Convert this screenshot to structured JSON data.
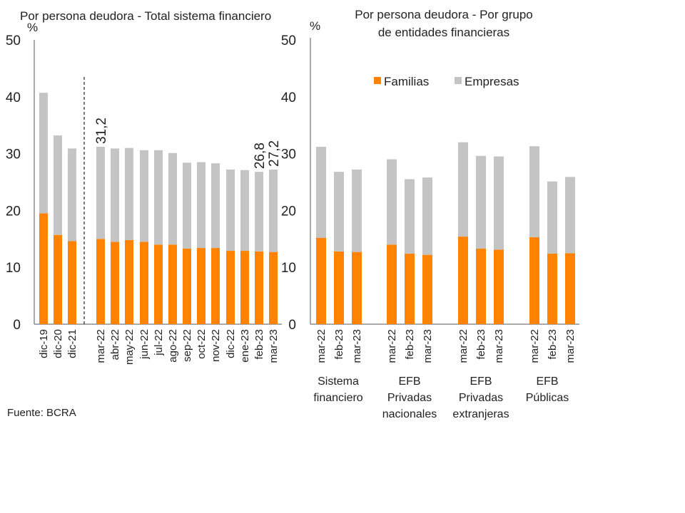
{
  "source": "Fuente: BCRA",
  "colors": {
    "familias": "#FF8200",
    "empresas": "#C4C4C4",
    "axis": "#555555"
  },
  "chart_data": [
    {
      "type": "bar",
      "stacked": true,
      "title": "Por persona deudora - Total sistema financiero",
      "ylabel": "%",
      "ylim": [
        0,
        50
      ],
      "yticks": [
        "0",
        "10",
        "20",
        "30",
        "40",
        "50"
      ],
      "categories": [
        "dic-19",
        "dic-20",
        "dic-21",
        "mar-22",
        "abr-22",
        "may-22",
        "jun-22",
        "jul-22",
        "ago-22",
        "sep-22",
        "oct-22",
        "nov-22",
        "dic-22",
        "ene-23",
        "feb-23",
        "mar-23"
      ],
      "series": [
        {
          "name": "Familias",
          "values": [
            19.5,
            15.7,
            14.6,
            15.0,
            14.5,
            14.8,
            14.5,
            14.0,
            14.0,
            13.3,
            13.4,
            13.4,
            12.9,
            12.9,
            12.8,
            12.7
          ]
        },
        {
          "name": "Empresas",
          "values": [
            21.2,
            17.5,
            16.3,
            16.2,
            16.4,
            16.2,
            16.1,
            16.6,
            16.1,
            15.1,
            15.1,
            14.9,
            14.3,
            14.2,
            14.0,
            14.5
          ]
        }
      ],
      "totals": [
        40.7,
        33.2,
        30.9,
        31.2,
        30.9,
        31.0,
        30.6,
        30.6,
        30.1,
        28.4,
        28.5,
        28.3,
        27.2,
        27.1,
        26.8,
        27.2
      ],
      "annotations": [
        {
          "category": "mar-22",
          "text": "31,2"
        },
        {
          "category": "feb-23",
          "text": "26,8"
        },
        {
          "category": "mar-23",
          "text": "27,2"
        }
      ]
    },
    {
      "type": "bar",
      "stacked": true,
      "title_lines": [
        "Por persona deudora - Por grupo",
        "de entidades financieras"
      ],
      "ylabel": "%",
      "ylim": [
        0,
        50
      ],
      "yticks": [
        "0",
        "10",
        "20",
        "30",
        "40",
        "50"
      ],
      "legend": [
        "Familias",
        "Empresas"
      ],
      "groups": [
        {
          "label_lines": [
            "Sistema",
            "financiero"
          ],
          "categories": [
            "mar-22",
            "feb-23",
            "mar-23"
          ],
          "familias": [
            15.2,
            12.8,
            12.7
          ],
          "empresas": [
            16.0,
            14.0,
            14.5
          ]
        },
        {
          "label_lines": [
            "EFB",
            "Privadas",
            "nacionales"
          ],
          "categories": [
            "mar-22",
            "feb-23",
            "mar-23"
          ],
          "familias": [
            14.0,
            12.4,
            12.2
          ],
          "empresas": [
            15.0,
            13.1,
            13.6
          ]
        },
        {
          "label_lines": [
            "EFB",
            "Privadas",
            "extranjeras"
          ],
          "categories": [
            "mar-22",
            "feb-23",
            "mar-23"
          ],
          "familias": [
            15.4,
            13.3,
            13.1
          ],
          "empresas": [
            16.6,
            16.3,
            16.4
          ]
        },
        {
          "label_lines": [
            "EFB",
            "Públicas"
          ],
          "categories": [
            "mar-22",
            "feb-23",
            "mar-23"
          ],
          "familias": [
            15.3,
            12.4,
            12.5
          ],
          "empresas": [
            16.0,
            12.7,
            13.4
          ]
        }
      ]
    }
  ]
}
